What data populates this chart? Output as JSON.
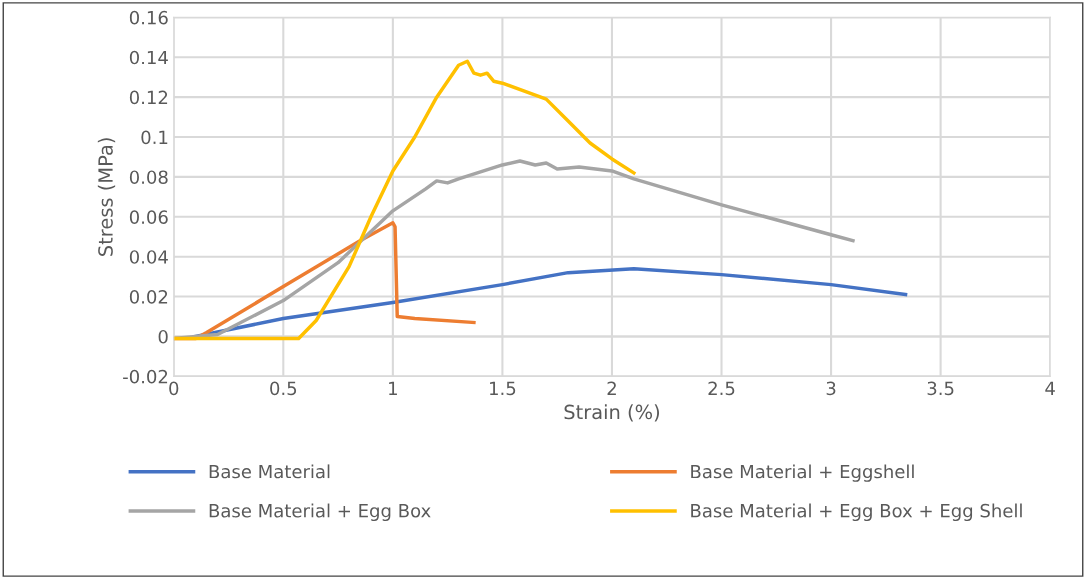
{
  "chart_data": {
    "type": "line",
    "xlabel": "Strain (%)",
    "ylabel": "Stress (MPa)",
    "xlim": [
      0,
      4
    ],
    "ylim": [
      -0.02,
      0.16
    ],
    "xticks": [
      0,
      0.5,
      1,
      1.5,
      2,
      2.5,
      3,
      3.5,
      4
    ],
    "yticks": [
      {
        "value": -0.02,
        "label": "-0.02"
      },
      0,
      0.02,
      0.04,
      0.06,
      0.08,
      {
        "value": 0.1,
        "label": "0.1"
      },
      0.12,
      0.14,
      0.16
    ],
    "grid": true,
    "legend": "bottom",
    "marker": "none",
    "line_style": "solid",
    "series": [
      {
        "name": "Base Material",
        "color": "#4472c4",
        "x": [
          0.1,
          0.5,
          1,
          1.5,
          1.8,
          2.1,
          2.5,
          3,
          3.34
        ],
        "values": [
          0,
          0.009,
          0.017,
          0.026,
          0.032,
          0.034,
          0.031,
          0.026,
          0.021
        ]
      },
      {
        "name": "Base Material + Eggshell",
        "color": "#ed7d31",
        "x": [
          0,
          0.1,
          0.15,
          0.5,
          0.85,
          1,
          1.01,
          1.02,
          1.1,
          1.37
        ],
        "values": [
          -0.001,
          -0.001,
          0.002,
          0.025,
          0.048,
          0.057,
          0.055,
          0.01,
          0.009,
          0.007
        ]
      },
      {
        "name": "Base Material + Egg Box",
        "color": "#a5a5a5",
        "x": [
          0,
          0.2,
          0.5,
          0.75,
          1,
          1.15,
          1.2,
          1.25,
          1.3,
          1.5,
          1.58,
          1.65,
          1.7,
          1.75,
          1.85,
          2.0,
          2.1,
          2.5,
          3,
          3.1
        ],
        "values": [
          -0.001,
          0.001,
          0.018,
          0.037,
          0.063,
          0.074,
          0.078,
          0.077,
          0.079,
          0.086,
          0.088,
          0.086,
          0.087,
          0.084,
          0.085,
          0.083,
          0.079,
          0.066,
          0.051,
          0.048
        ]
      },
      {
        "name": "Base Material + Egg Box + Egg Shell",
        "color": "#ffc000",
        "x": [
          0,
          0.57,
          0.65,
          0.8,
          0.9,
          1,
          1.1,
          1.2,
          1.3,
          1.34,
          1.37,
          1.4,
          1.43,
          1.46,
          1.5,
          1.7,
          1.8,
          1.9,
          2.0,
          2.1
        ],
        "values": [
          -0.001,
          -0.001,
          0.008,
          0.035,
          0.06,
          0.083,
          0.1,
          0.12,
          0.136,
          0.138,
          0.132,
          0.131,
          0.132,
          0.128,
          0.127,
          0.119,
          0.108,
          0.097,
          0.089,
          0.082
        ]
      }
    ]
  }
}
